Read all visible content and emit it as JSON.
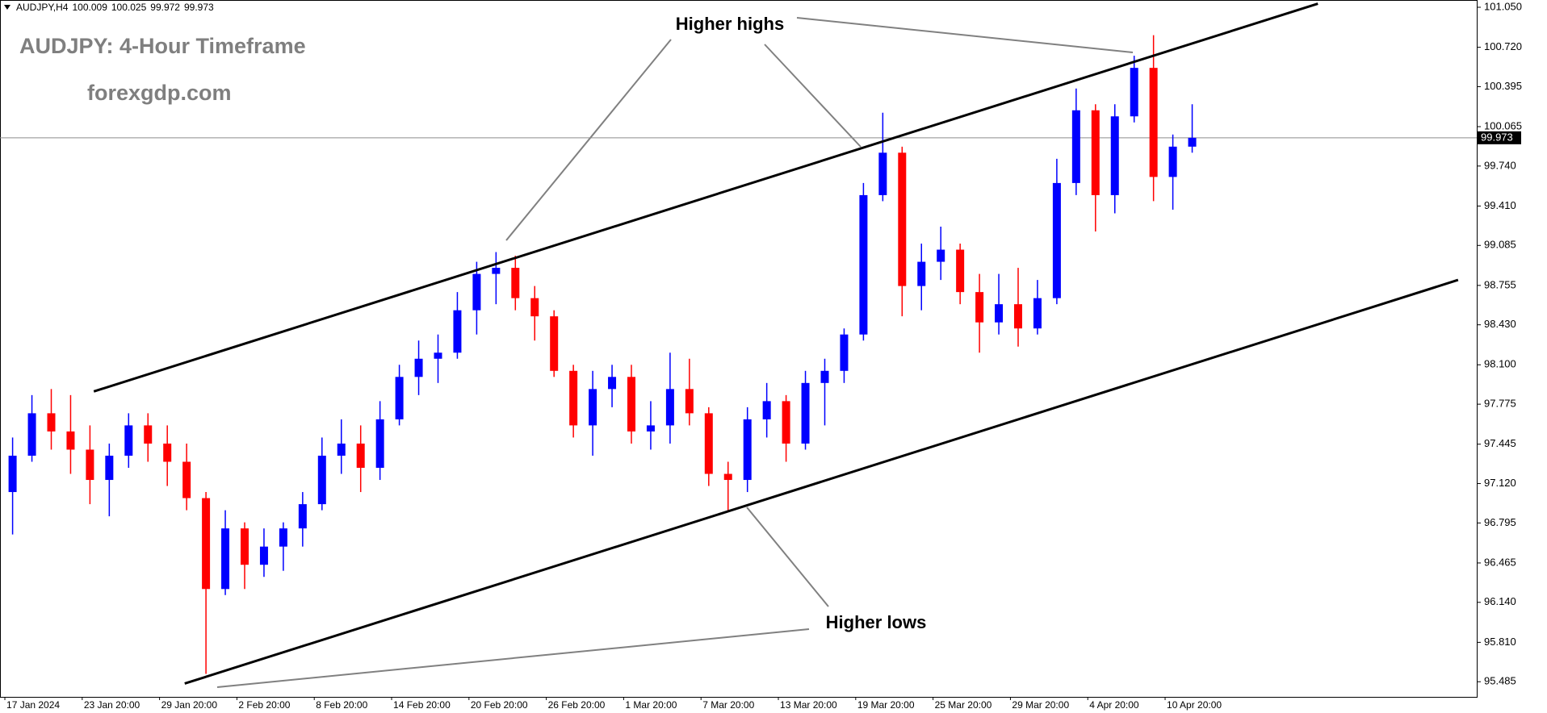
{
  "chart_data": {
    "type": "candlestick",
    "symbol": "AUDJPY,H4",
    "header_ohlc": [
      100.009,
      100.025,
      99.972,
      99.973
    ],
    "title": "AUDJPY: 4-Hour Timeframe",
    "subtitle": "forexgdp.com",
    "annotations": [
      "Higher highs",
      "Higher lows"
    ],
    "up_color": "#0000ff",
    "down_color": "#ff0000",
    "grid": false,
    "last_price": 99.973,
    "ylim": [
      95.36,
      101.11
    ],
    "yticks": [
      {
        "value": 101.05,
        "label": "101.050"
      },
      {
        "value": 100.72,
        "label": "100.720"
      },
      100.395,
      100.065,
      {
        "value": 99.74,
        "label": "99.740"
      },
      {
        "value": 99.41,
        "label": "99.410"
      },
      99.085,
      98.755,
      {
        "value": 98.43,
        "label": "98.430"
      },
      {
        "value": 98.1,
        "label": "98.100"
      },
      97.775,
      97.445,
      {
        "value": 97.12,
        "label": "97.120"
      },
      96.795,
      96.465,
      {
        "value": 96.14,
        "label": "96.140"
      },
      {
        "value": 95.81,
        "label": "95.810"
      },
      95.485
    ],
    "categories": [
      "17 Jan 2024",
      null,
      null,
      null,
      "23 Jan 20:00",
      null,
      null,
      null,
      "29 Jan 20:00",
      null,
      null,
      null,
      "2 Feb 20:00",
      null,
      null,
      null,
      "8 Feb 20:00",
      null,
      null,
      null,
      "14 Feb 20:00",
      null,
      null,
      null,
      "20 Feb 20:00",
      null,
      null,
      null,
      "26 Feb 20:00",
      null,
      null,
      null,
      "1 Mar 20:00",
      null,
      null,
      null,
      "7 Mar 20:00",
      null,
      null,
      null,
      "13 Mar 20:00",
      null,
      null,
      null,
      "19 Mar 20:00",
      null,
      null,
      null,
      "25 Mar 20:00",
      null,
      null,
      null,
      "29 Mar 20:00",
      null,
      null,
      null,
      "4 Apr 20:00",
      null,
      null,
      null,
      "10 Apr 20:00",
      null
    ],
    "open": [
      97.05,
      97.35,
      97.7,
      97.55,
      97.4,
      97.15,
      97.35,
      97.6,
      97.45,
      97.3,
      97.0,
      96.25,
      96.75,
      96.45,
      96.6,
      96.75,
      96.95,
      97.35,
      97.45,
      97.25,
      97.65,
      98.0,
      98.15,
      98.2,
      98.55,
      98.85,
      98.9,
      98.65,
      98.5,
      98.05,
      97.6,
      97.9,
      98.0,
      97.55,
      97.6,
      97.9,
      97.7,
      97.2,
      97.15,
      97.65,
      97.8,
      97.45,
      97.95,
      98.05,
      98.35,
      99.5,
      99.85,
      98.75,
      98.95,
      99.05,
      98.7,
      98.45,
      98.6,
      98.4,
      98.65,
      99.6,
      100.2,
      99.5,
      100.15,
      100.55,
      99.65,
      99.9
    ],
    "high": [
      97.5,
      97.85,
      97.9,
      97.85,
      97.6,
      97.45,
      97.7,
      97.7,
      97.6,
      97.45,
      97.05,
      96.9,
      96.8,
      96.75,
      96.8,
      97.05,
      97.5,
      97.65,
      97.6,
      97.8,
      98.1,
      98.3,
      98.35,
      98.7,
      98.95,
      99.03,
      99.0,
      98.75,
      98.55,
      98.1,
      98.05,
      98.1,
      98.1,
      97.8,
      98.2,
      98.15,
      97.75,
      97.3,
      97.75,
      97.95,
      97.85,
      98.05,
      98.15,
      98.4,
      99.6,
      100.18,
      99.9,
      99.1,
      99.24,
      99.1,
      98.85,
      98.85,
      98.9,
      98.8,
      99.8,
      100.38,
      100.25,
      100.25,
      100.65,
      100.82,
      100.0,
      100.25
    ],
    "low": [
      96.7,
      97.3,
      97.4,
      97.2,
      96.95,
      96.85,
      97.25,
      97.3,
      97.1,
      96.9,
      95.55,
      96.2,
      96.25,
      96.35,
      96.4,
      96.6,
      96.9,
      97.2,
      97.05,
      97.15,
      97.6,
      97.85,
      97.95,
      98.15,
      98.35,
      98.6,
      98.55,
      98.3,
      98.0,
      97.5,
      97.35,
      97.75,
      97.45,
      97.4,
      97.45,
      97.6,
      97.1,
      96.9,
      97.05,
      97.5,
      97.3,
      97.4,
      97.6,
      97.95,
      98.3,
      99.45,
      98.5,
      98.55,
      98.8,
      98.6,
      98.2,
      98.35,
      98.25,
      98.35,
      98.6,
      99.5,
      99.2,
      99.35,
      100.1,
      99.45,
      99.38,
      99.85
    ],
    "close": [
      97.35,
      97.7,
      97.55,
      97.4,
      97.15,
      97.35,
      97.6,
      97.45,
      97.3,
      97.0,
      96.25,
      96.75,
      96.45,
      96.6,
      96.75,
      96.95,
      97.35,
      97.45,
      97.25,
      97.65,
      98.0,
      98.15,
      98.2,
      98.55,
      98.85,
      98.9,
      98.65,
      98.5,
      98.05,
      97.6,
      97.9,
      98.0,
      97.55,
      97.6,
      97.9,
      97.7,
      97.2,
      97.15,
      97.65,
      97.8,
      97.45,
      97.95,
      98.05,
      98.35,
      99.5,
      99.85,
      98.75,
      98.95,
      99.05,
      98.7,
      98.45,
      98.6,
      98.4,
      98.65,
      99.6,
      100.2,
      99.5,
      100.15,
      100.55,
      99.65,
      99.9,
      99.973
    ],
    "trendlines": [
      {
        "x": [
          4.2,
          67.5
        ],
        "y": [
          97.88,
          101.08
        ]
      },
      {
        "x": [
          8.9,
          74.75
        ],
        "y": [
          95.47,
          98.8
        ]
      }
    ]
  }
}
